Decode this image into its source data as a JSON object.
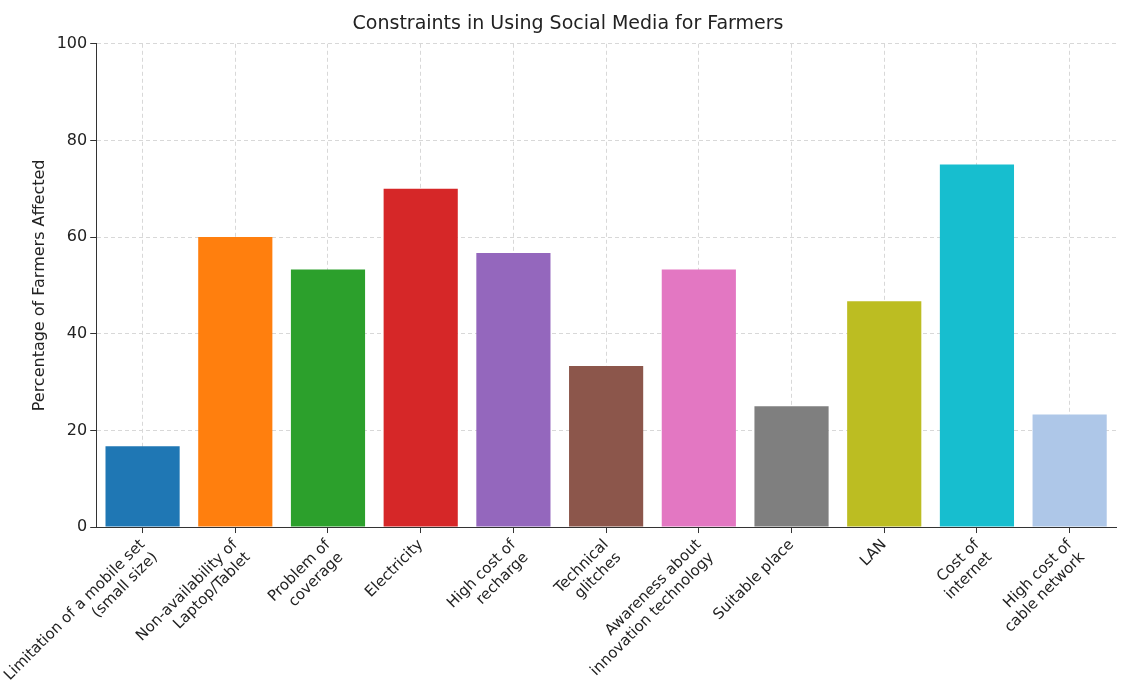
{
  "chart_data": {
    "type": "bar",
    "title": "Constraints in Using Social Media for Farmers",
    "ylabel": "Percentage of Farmers Affected",
    "categories": [
      "Limitation of a mobile set\n(small size)",
      "Non-availability of\nLaptop/Tablet",
      "Problem of\ncoverage",
      "Electricity",
      "High cost of\nrecharge",
      "Technical\nglitches",
      "Awareness about\ninnovation technology",
      "Suitable place",
      "LAN",
      "Cost of\ninternet",
      "High cost of\ncable network"
    ],
    "values": [
      16.7,
      60,
      53.3,
      70,
      56.7,
      33.3,
      53.3,
      25,
      46.7,
      75,
      23.3
    ],
    "colors": [
      "#1f77b4",
      "#ff7f0e",
      "#2ca02c",
      "#d62728",
      "#9467bd",
      "#8c564b",
      "#e377c2",
      "#7f7f7f",
      "#bcbd22",
      "#17becf",
      "#aec7e8"
    ],
    "ylim": [
      0,
      100
    ],
    "yticks": [
      0,
      20,
      40,
      60,
      80,
      100
    ],
    "grid": true,
    "legend": false
  }
}
